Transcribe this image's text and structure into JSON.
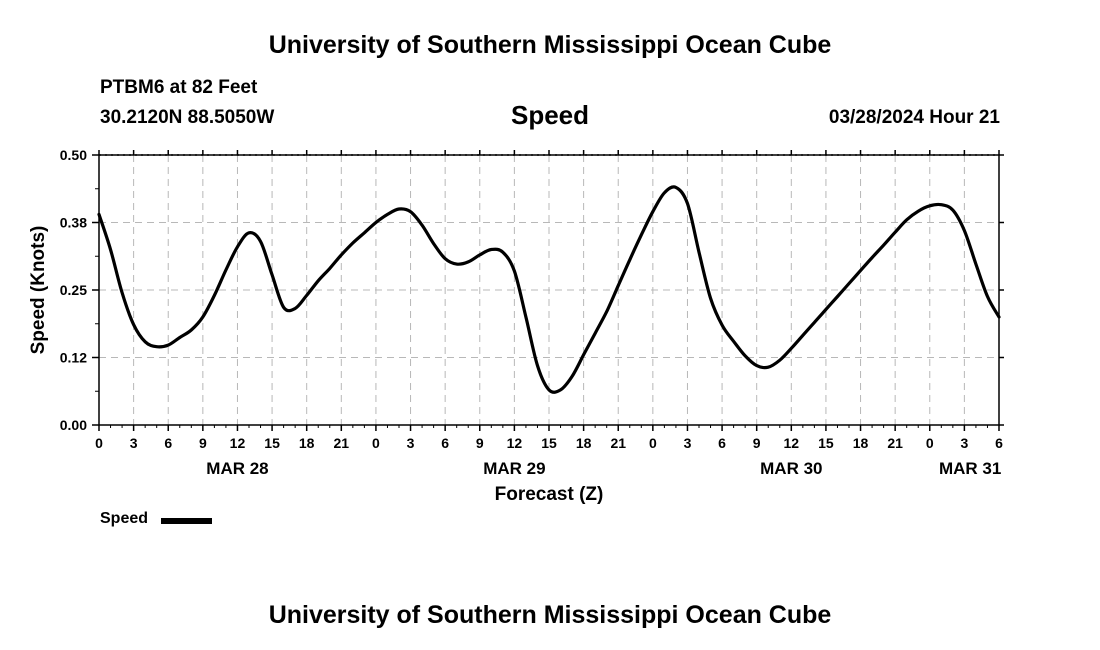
{
  "header": {
    "title_top": "University of Southern Mississippi Ocean Cube",
    "title_bottom": "University of Southern Mississippi Ocean Cube",
    "station": "PTBM6 at 82 Feet",
    "coords": "30.2120N  88.5050W",
    "datetime": "03/28/2024 Hour 21"
  },
  "legend": {
    "label": "Speed",
    "color": "#000000"
  },
  "chart_data": {
    "type": "line",
    "title": "Speed",
    "xlabel": "Forecast (Z)",
    "ylabel": "Speed (Knots)",
    "xlim": [
      0,
      78
    ],
    "ylim": [
      0,
      0.5
    ],
    "x_unit": "hours from MAR 28 00Z",
    "x_ticks": [
      0,
      3,
      6,
      9,
      12,
      15,
      18,
      21,
      24,
      27,
      30,
      33,
      36,
      39,
      42,
      45,
      48,
      51,
      54,
      57,
      60,
      63,
      66,
      69,
      72,
      75,
      78
    ],
    "x_tick_labels": [
      "0",
      "3",
      "6",
      "9",
      "12",
      "15",
      "18",
      "21",
      "0",
      "3",
      "6",
      "9",
      "12",
      "15",
      "18",
      "21",
      "0",
      "3",
      "6",
      "9",
      "12",
      "15",
      "18",
      "21",
      "0",
      "3",
      "6"
    ],
    "y_ticks": [
      0,
      0.125,
      0.25,
      0.375,
      0.5
    ],
    "y_tick_labels": [
      "0.00",
      "0.12",
      "0.25",
      "0.38",
      "0.50"
    ],
    "date_labels": [
      {
        "text": "MAR 28",
        "x": 12
      },
      {
        "text": "MAR 29",
        "x": 36
      },
      {
        "text": "MAR 30",
        "x": 60
      },
      {
        "text": "MAR 31",
        "x": 75.5
      }
    ],
    "grid": true,
    "series": [
      {
        "name": "Speed",
        "x": [
          0,
          1,
          2,
          3,
          4,
          5,
          6,
          7,
          8,
          9,
          10,
          11,
          12,
          13,
          14,
          15,
          16,
          17,
          18,
          19,
          20,
          21,
          22,
          23,
          24,
          25,
          26,
          27,
          28,
          29,
          30,
          31,
          32,
          33,
          34,
          35,
          36,
          37,
          38,
          39,
          40,
          41,
          42,
          43,
          44,
          45,
          46,
          47,
          48,
          49,
          50,
          51,
          52,
          53,
          54,
          55,
          56,
          57,
          58,
          59,
          60,
          61,
          62,
          63,
          64,
          65,
          66,
          67,
          68,
          69,
          70,
          71,
          72,
          73,
          74,
          75,
          76,
          77,
          78
        ],
        "values": [
          0.39,
          0.325,
          0.245,
          0.186,
          0.154,
          0.145,
          0.148,
          0.162,
          0.176,
          0.2,
          0.24,
          0.287,
          0.33,
          0.356,
          0.34,
          0.278,
          0.218,
          0.216,
          0.24,
          0.267,
          0.29,
          0.315,
          0.337,
          0.356,
          0.375,
          0.39,
          0.4,
          0.395,
          0.37,
          0.336,
          0.308,
          0.298,
          0.302,
          0.315,
          0.325,
          0.32,
          0.285,
          0.2,
          0.11,
          0.065,
          0.065,
          0.09,
          0.13,
          0.17,
          0.21,
          0.258,
          0.306,
          0.352,
          0.395,
          0.43,
          0.44,
          0.41,
          0.32,
          0.235,
          0.185,
          0.155,
          0.128,
          0.11,
          0.107,
          0.12,
          0.142,
          0.166,
          0.19,
          0.214,
          0.238,
          0.262,
          0.286,
          0.31,
          0.333,
          0.357,
          0.38,
          0.396,
          0.406,
          0.408,
          0.398,
          0.36,
          0.298,
          0.238,
          0.2
        ]
      }
    ]
  }
}
